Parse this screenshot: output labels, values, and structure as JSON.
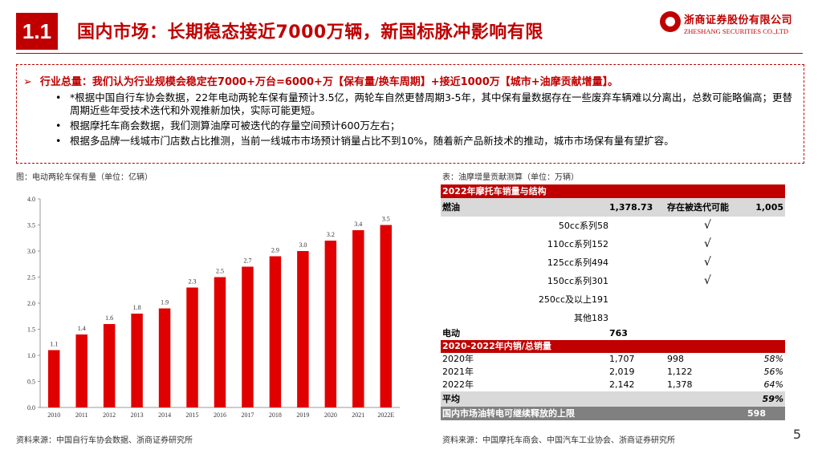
{
  "header": {
    "section_number": "1.1",
    "title": "国内市场：长期稳态接近7000万辆，新国标脉冲影响有限",
    "logo_cn": "浙商证券股份有限公司",
    "logo_en": "ZHESHANG SECURITIES CO.,LTD"
  },
  "summary": {
    "arrow": "➢",
    "headline": "行业总量：我们认为行业规模会稳定在7000+万台=6000+万【保有量/换车周期】+接近1000万【城市+油摩贡献增量】。",
    "bullets": [
      "*根据中国自行车协会数据，22年电动两轮车保有量预计3.5亿，两轮车自然更替周期3-5年，其中保有量数据存在一些废弃车辆难以分离出，总数可能略偏高；更替周期近些年受技术迭代和外观推新加快，实际可能更短。",
      "根据摩托车商会数据，我们测算油摩可被迭代的存量空间预计600万左右；",
      "根据多品牌一线城市门店数占比推测，当前一线城市市场预计销量占比不到10%，随着新产品新技术的推动，城市市场保有量有望扩容。"
    ]
  },
  "chart_title": "图：电动两轮车保有量（单位：亿辆）",
  "chart_data": {
    "type": "bar",
    "title": "电动两轮车保有量（单位：亿辆）",
    "categories": [
      "2010",
      "2011",
      "2012",
      "2013",
      "2014",
      "2015",
      "2016",
      "2017",
      "2018",
      "2019",
      "2020",
      "2021",
      "2022E"
    ],
    "values": [
      1.1,
      1.4,
      1.6,
      1.8,
      1.9,
      2.3,
      2.5,
      2.7,
      2.9,
      3.0,
      3.2,
      3.4,
      3.5
    ],
    "value_labels": [
      "1.1",
      "1.4",
      "1.6",
      "1.8",
      "1.9",
      "2.3",
      "2.5",
      "2.7",
      "2.9",
      "3.0",
      "3.2",
      "3.4",
      "3.5"
    ],
    "y_ticks": [
      "0.0",
      "0.5",
      "1.0",
      "1.5",
      "2.0",
      "2.5",
      "3.0",
      "3.5",
      "4.0"
    ],
    "ylim": [
      0,
      4
    ],
    "color": "#e00000",
    "grid": false
  },
  "chart_source": "资料来源：中国自行车协会数据、浙商证券研究所",
  "table_title": "表：油摩增量贡献测算（单位：万辆）",
  "table": {
    "section1_header": "2022年摩托车销量与结构",
    "fuel": {
      "label": "燃油",
      "value": "1,378.73",
      "note": "存在被迭代可能",
      "total": "1,005"
    },
    "sub_rows": [
      {
        "label": "50cc系列",
        "value": "58",
        "check": "√"
      },
      {
        "label": "110cc系列",
        "value": "152",
        "check": "√"
      },
      {
        "label": "125cc系列",
        "value": "494",
        "check": "√"
      },
      {
        "label": "150cc系列",
        "value": "301",
        "check": "√"
      },
      {
        "label": "250cc及以上",
        "value": "191",
        "check": ""
      },
      {
        "label": "其他",
        "value": "183",
        "check": ""
      }
    ],
    "electric": {
      "label": "电动",
      "value": "763"
    },
    "section2_header": "2020-2022年内销/总销量",
    "years": [
      {
        "year": "2020年",
        "a": "1,707",
        "b": "998",
        "pct": "58%"
      },
      {
        "year": "2021年",
        "a": "2,019",
        "b": "1,122",
        "pct": "56%"
      },
      {
        "year": "2022年",
        "a": "2,142",
        "b": "1,378",
        "pct": "64%"
      }
    ],
    "average": {
      "label": "平均",
      "pct": "59%"
    },
    "upper_limit": {
      "label": "国内市场油转电可继续释放的上限",
      "value": "598"
    }
  },
  "table_source": "资料来源：中国摩托车商会、中国汽车工业协会、浙商证券研究所",
  "page_number": "5",
  "colors": {
    "brand": "#c00000",
    "bar": "#e00000",
    "band": "#d9d9d9",
    "dark_band": "#808080"
  }
}
